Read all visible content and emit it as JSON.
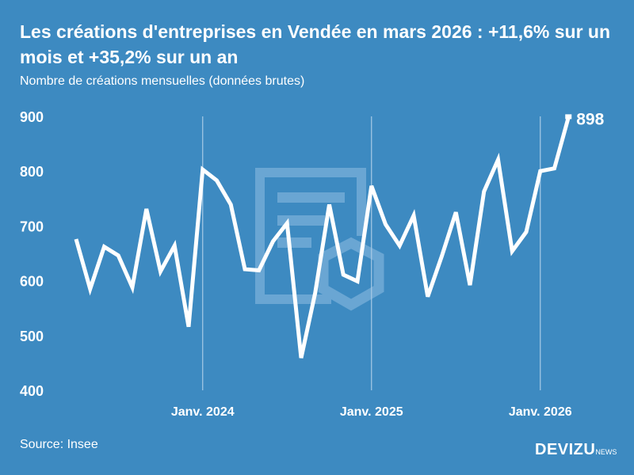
{
  "colors": {
    "background": "#3d8ac1",
    "line": "#ffffff",
    "watermark": "#6aa6d3"
  },
  "chart_data": {
    "type": "line",
    "title": "Les créations d'entreprises en Vendée en mars 2026 : +11,6% sur un mois et +35,2% sur un an",
    "subtitle": "Nombre de créations mensuelles (données brutes)",
    "x": [
      "2023-04",
      "2023-05",
      "2023-06",
      "2023-07",
      "2023-08",
      "2023-09",
      "2023-10",
      "2023-11",
      "2023-12",
      "2024-01",
      "2024-02",
      "2024-03",
      "2024-04",
      "2024-05",
      "2024-06",
      "2024-07",
      "2024-08",
      "2024-09",
      "2024-10",
      "2024-11",
      "2024-12",
      "2025-01",
      "2025-02",
      "2025-03",
      "2025-04",
      "2025-05",
      "2025-06",
      "2025-07",
      "2025-08",
      "2025-09",
      "2025-10",
      "2025-11",
      "2025-12",
      "2026-01",
      "2026-02",
      "2026-03"
    ],
    "values": [
      676,
      585,
      662,
      646,
      588,
      731,
      617,
      664,
      516,
      803,
      783,
      739,
      621,
      619,
      672,
      705,
      459,
      578,
      739,
      611,
      599,
      773,
      703,
      664,
      719,
      571,
      645,
      725,
      592,
      763,
      821,
      654,
      689,
      800,
      805,
      898
    ],
    "ylim": [
      400,
      900
    ],
    "yticks": [
      "900",
      "800",
      "700",
      "600",
      "500",
      "400"
    ],
    "xticks": [
      {
        "date": "2024-01",
        "label": "Janv. 2024"
      },
      {
        "date": "2025-01",
        "label": "Janv. 2025"
      },
      {
        "date": "2026-01",
        "label": "Janv. 2026"
      }
    ],
    "last_label": "898",
    "grid": "vertical lines at January"
  },
  "footer": {
    "source": "Source: Insee",
    "logo": "DEVIZU",
    "logo_suffix": "NEWS"
  }
}
